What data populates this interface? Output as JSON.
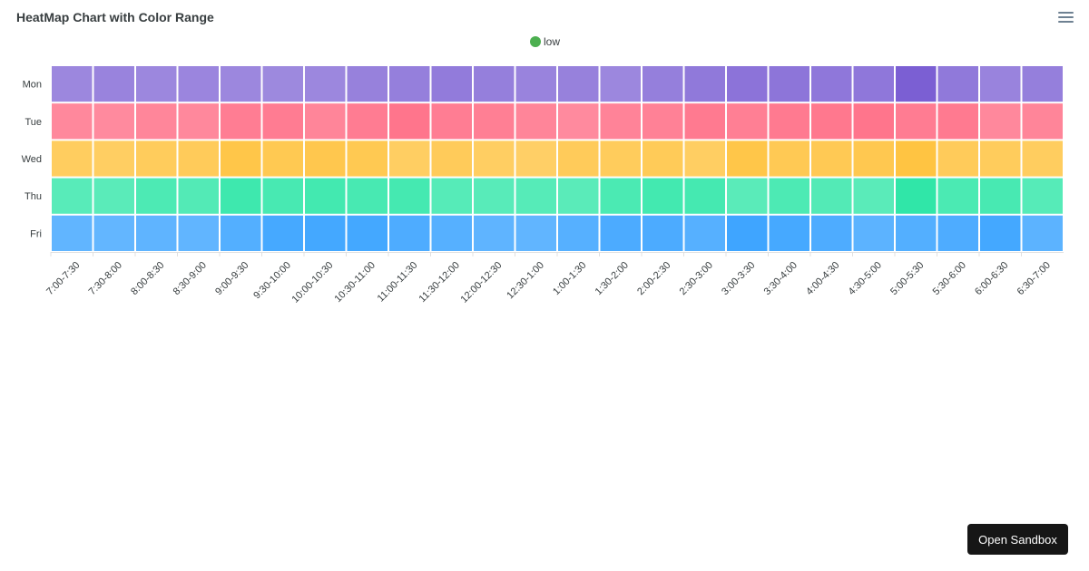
{
  "chart_data": {
    "type": "heatmap",
    "title": "HeatMap Chart with Color Range",
    "legend": {
      "position": "top-center",
      "entries": [
        {
          "label": "low",
          "color": "#4caf50"
        }
      ]
    },
    "x": [
      "7:00-7:30",
      "7:30-8:00",
      "8:00-8:30",
      "8:30-9:00",
      "9:00-9:30",
      "9:30-10:00",
      "10:00-10:30",
      "10:30-11:00",
      "11:00-11:30",
      "11:30-12:00",
      "12:00-12:30",
      "12:30-1:00",
      "1:00-1:30",
      "1:30-2:00",
      "2:00-2:30",
      "2:30-3:00",
      "3:00-3:30",
      "3:30-4:00",
      "4:00-4:30",
      "4:30-5:00",
      "5:00-5:30",
      "5:30-6:00",
      "6:00-6:30",
      "6:30-7:00"
    ],
    "y": [
      "Mon",
      "Tue",
      "Wed",
      "Thu",
      "Fri"
    ],
    "series": [
      {
        "name": "Mon",
        "color": "#7b5fd3",
        "values": [
          0.5,
          0.55,
          0.5,
          0.52,
          0.5,
          0.48,
          0.5,
          0.58,
          0.6,
          0.65,
          0.6,
          0.55,
          0.58,
          0.5,
          0.6,
          0.68,
          0.75,
          0.72,
          0.7,
          0.7,
          1.0,
          0.68,
          0.55,
          0.6
        ]
      },
      {
        "name": "Tue",
        "color": "#ff6f87",
        "values": [
          0.65,
          0.62,
          0.68,
          0.65,
          0.8,
          0.82,
          0.7,
          0.82,
          0.92,
          0.8,
          0.78,
          0.7,
          0.62,
          0.72,
          0.75,
          0.85,
          0.78,
          0.85,
          0.88,
          0.92,
          0.82,
          0.85,
          0.65,
          0.7
        ]
      },
      {
        "name": "Wed",
        "color": "#ffc23d",
        "values": [
          0.65,
          0.62,
          0.68,
          0.7,
          0.88,
          0.78,
          0.82,
          0.78,
          0.62,
          0.7,
          0.62,
          0.58,
          0.7,
          0.68,
          0.72,
          0.62,
          0.88,
          0.76,
          0.76,
          0.8,
          0.95,
          0.7,
          0.68,
          0.65
        ]
      },
      {
        "name": "Thu",
        "color": "#2ee6a7",
        "values": [
          0.6,
          0.58,
          0.7,
          0.65,
          0.85,
          0.75,
          0.8,
          0.75,
          0.78,
          0.62,
          0.6,
          0.62,
          0.58,
          0.72,
          0.8,
          0.78,
          0.58,
          0.7,
          0.65,
          0.58,
          0.98,
          0.72,
          0.75,
          0.62
        ]
      },
      {
        "name": "Fri",
        "color": "#3aa3ff",
        "values": [
          0.6,
          0.58,
          0.62,
          0.6,
          0.75,
          0.88,
          0.9,
          0.9,
          0.8,
          0.72,
          0.62,
          0.6,
          0.72,
          0.82,
          0.82,
          0.72,
          0.95,
          0.88,
          0.8,
          0.65,
          0.75,
          0.8,
          0.9,
          0.65
        ]
      }
    ]
  },
  "legend_label": "low",
  "sandbox_button": "Open Sandbox"
}
